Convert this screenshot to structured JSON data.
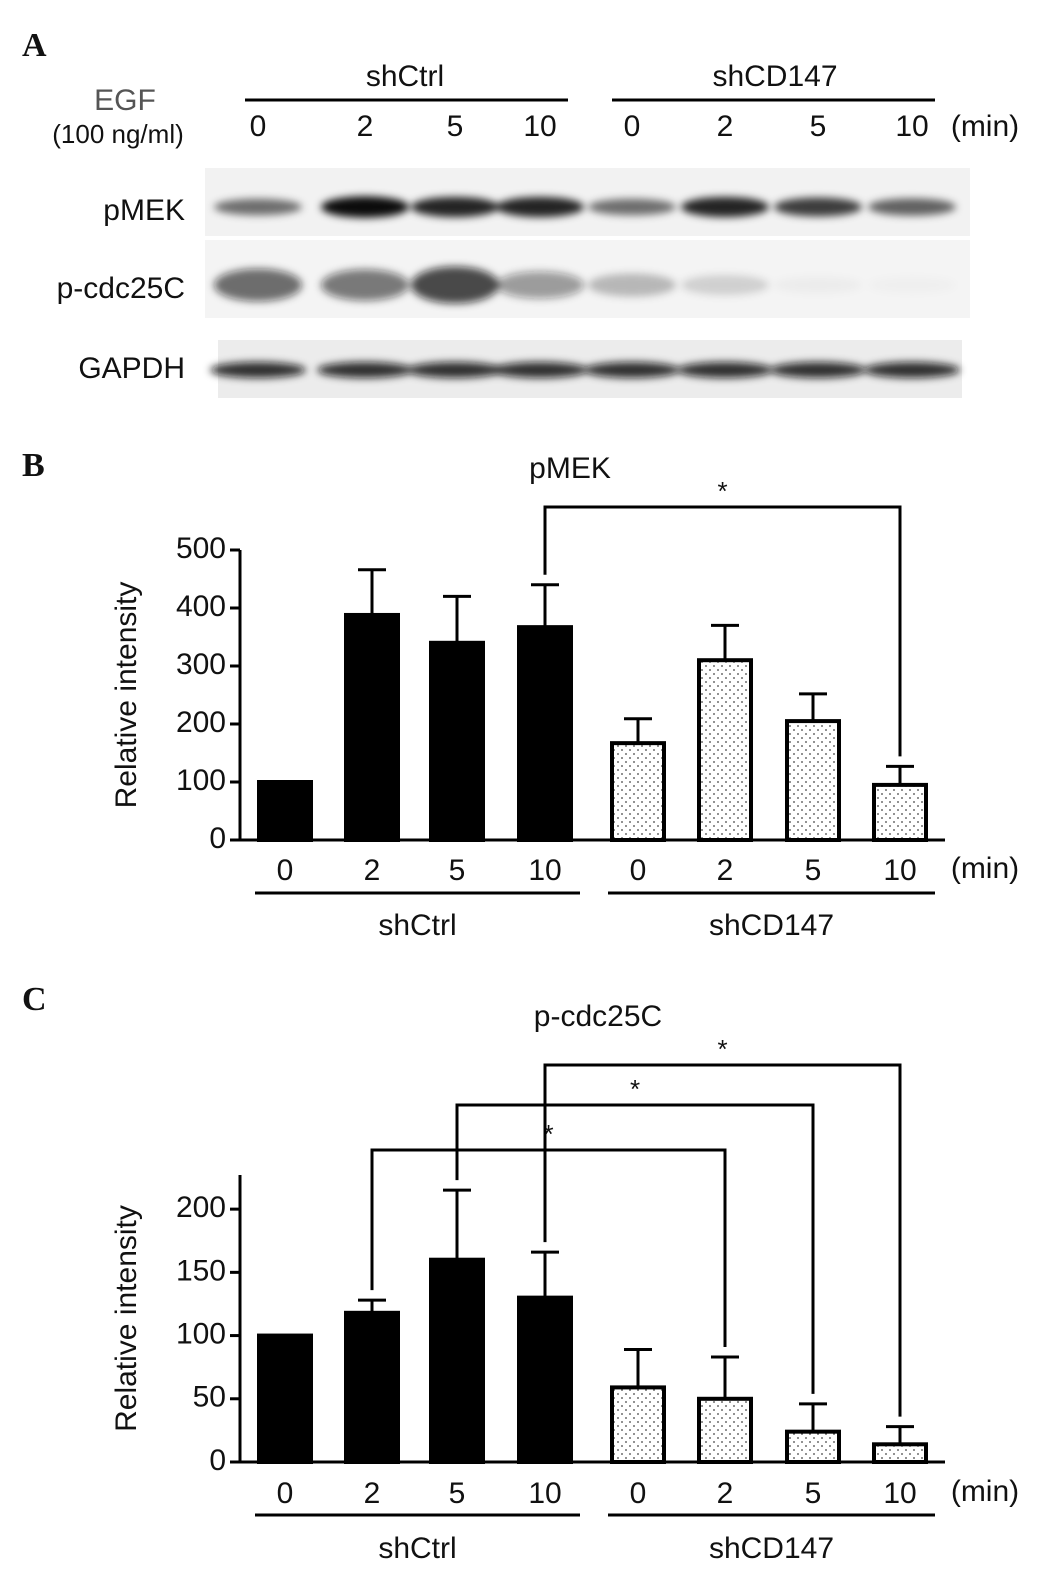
{
  "panel_a": {
    "label": "A",
    "treatment": "EGF",
    "dose": "(100 ng/ml)",
    "groups": [
      "shCtrl",
      "shCD147"
    ],
    "times": [
      "0",
      "2",
      "5",
      "10",
      "0",
      "2",
      "5",
      "10"
    ],
    "unit": "(min)",
    "rows": [
      "pMEK",
      "p-cdc25C",
      "GAPDH"
    ]
  },
  "chart_data": [
    {
      "type": "bar",
      "panel": "B",
      "title": "pMEK",
      "ylabel": "Relative intensity",
      "categories": [
        "0",
        "2",
        "5",
        "10",
        "0",
        "2",
        "5",
        "10"
      ],
      "unit": "(min)",
      "ylim": [
        0,
        500
      ],
      "yticks": [
        0,
        100,
        200,
        300,
        400,
        500
      ],
      "series": [
        {
          "name": "shCtrl",
          "color": "#000000",
          "values": [
            100,
            388,
            340,
            367,
            null,
            null,
            null,
            null
          ],
          "errors": [
            0,
            78,
            80,
            73,
            null,
            null,
            null,
            null
          ]
        },
        {
          "name": "shCD147",
          "color": "#ffffff",
          "pattern": "dots",
          "values": [
            null,
            null,
            null,
            null,
            167,
            310,
            205,
            95
          ],
          "errors": [
            null,
            null,
            null,
            null,
            42,
            60,
            47,
            32
          ]
        }
      ],
      "significance": [
        {
          "from": 3,
          "to": 7,
          "label": "*"
        }
      ]
    },
    {
      "type": "bar",
      "panel": "C",
      "title": "p-cdc25C",
      "ylabel": "Relative intensity",
      "categories": [
        "0",
        "2",
        "5",
        "10",
        "0",
        "2",
        "5",
        "10"
      ],
      "unit": "(min)",
      "ylim": [
        0,
        227
      ],
      "yticks": [
        0,
        50,
        100,
        150,
        200
      ],
      "series": [
        {
          "name": "shCtrl",
          "color": "#000000",
          "values": [
            100,
            118,
            160,
            130,
            null,
            null,
            null,
            null
          ],
          "errors": [
            0,
            10,
            55,
            36,
            null,
            null,
            null,
            null
          ]
        },
        {
          "name": "shCD147",
          "color": "#ffffff",
          "pattern": "dots",
          "values": [
            null,
            null,
            null,
            null,
            59,
            50,
            24,
            14
          ],
          "errors": [
            null,
            null,
            null,
            null,
            30,
            33,
            22,
            14
          ]
        }
      ],
      "significance": [
        {
          "from": 1,
          "to": 5,
          "label": "*"
        },
        {
          "from": 2,
          "to": 6,
          "label": "*"
        },
        {
          "from": 3,
          "to": 7,
          "label": "*"
        }
      ]
    }
  ]
}
